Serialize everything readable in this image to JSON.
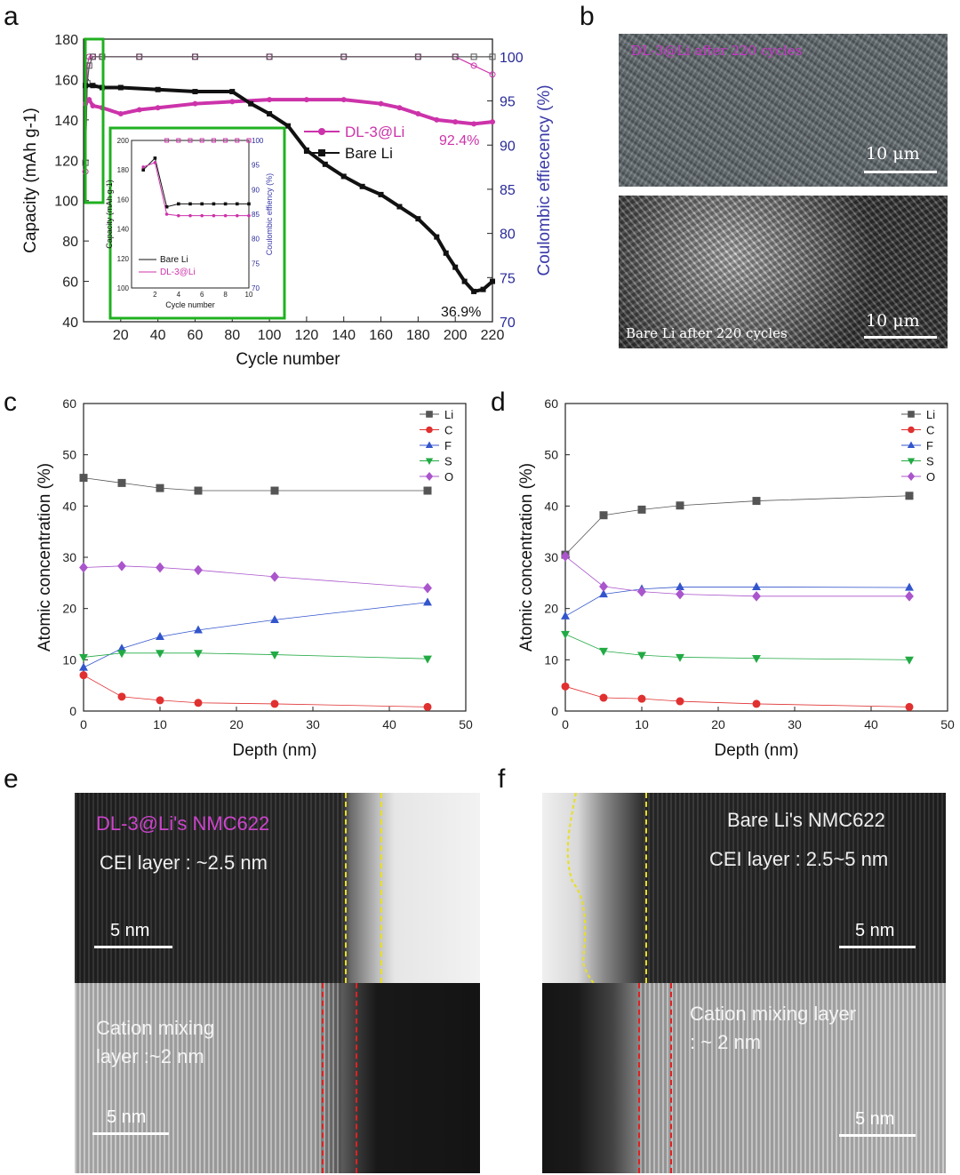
{
  "panels": {
    "a": "a",
    "b": "b",
    "c": "c",
    "d": "d",
    "e": "e",
    "f": "f"
  },
  "chart_data": [
    {
      "id": "a",
      "type": "line",
      "xlabel": "Cycle number",
      "ylabel": "Capacity (mAh g-1)",
      "y2label": "Coulombic effiecency (%)",
      "xlim": [
        0,
        220
      ],
      "ylim": [
        40,
        180
      ],
      "y2lim": [
        70,
        102
      ],
      "xticks": [
        20,
        40,
        60,
        80,
        100,
        120,
        140,
        160,
        180,
        200,
        220
      ],
      "yticks": [
        40,
        60,
        80,
        100,
        120,
        140,
        160,
        180
      ],
      "y2ticks": [
        70,
        75,
        80,
        85,
        90,
        95,
        100
      ],
      "series": [
        {
          "name": "DL-3@Li",
          "color": "#cc33aa",
          "marker": "circle",
          "x": [
            1,
            3,
            5,
            10,
            20,
            30,
            40,
            60,
            80,
            100,
            120,
            140,
            160,
            170,
            180,
            190,
            200,
            210,
            220
          ],
          "values": [
            148,
            150,
            147,
            146,
            143,
            145,
            146,
            148,
            149,
            150,
            150,
            150,
            148,
            146,
            143,
            140,
            139,
            138,
            139
          ]
        },
        {
          "name": "Bare Li",
          "color": "#111111",
          "marker": "square",
          "x": [
            1,
            5,
            10,
            20,
            40,
            60,
            80,
            90,
            100,
            110,
            120,
            130,
            140,
            150,
            160,
            170,
            180,
            190,
            195,
            200,
            205,
            210,
            215,
            220
          ],
          "values": [
            157,
            157,
            156,
            156,
            155,
            154,
            154,
            148,
            143,
            137,
            125,
            118,
            112,
            107,
            103,
            97,
            91,
            82,
            74,
            67,
            60,
            55,
            56,
            60
          ]
        }
      ],
      "ce_series": [
        {
          "name": "DL-3@Li CE",
          "color": "#cc33aa",
          "x": [
            1,
            2,
            3,
            5,
            10,
            30,
            60,
            100,
            140,
            180,
            200,
            210,
            220
          ],
          "values": [
            87,
            99,
            100,
            100,
            100,
            100,
            100,
            100,
            100,
            100,
            100,
            99,
            98
          ]
        },
        {
          "name": "Bare Li CE",
          "color": "#555555",
          "x": [
            1,
            2,
            3,
            5,
            10,
            30,
            60,
            100,
            140,
            180,
            200,
            210,
            220
          ],
          "values": [
            88,
            97,
            99,
            100,
            100,
            100,
            100,
            100,
            100,
            100,
            100,
            100,
            100
          ]
        }
      ],
      "annotations": [
        "92.4%",
        "36.9%"
      ],
      "inset": {
        "type": "line",
        "xlabel": "Cycle number",
        "ylabel": "Capacity (mAh g-1)",
        "y2label": "Coulombic effiency (%)",
        "xlim": [
          0,
          10
        ],
        "ylim": [
          100,
          200
        ],
        "y2lim": [
          70,
          100
        ],
        "xticks": [
          2,
          4,
          6,
          8,
          10
        ],
        "yticks": [
          100,
          120,
          140,
          160,
          180,
          200
        ],
        "y2ticks": [
          70,
          75,
          80,
          85,
          90,
          95,
          100
        ],
        "series": [
          {
            "name": "Bare Li",
            "color": "#111111",
            "x": [
              1,
              2,
              3,
              4,
              5,
              6,
              7,
              8,
              9,
              10
            ],
            "values": [
              180,
              188,
              155,
              157,
              157,
              157,
              157,
              157,
              157,
              157
            ]
          },
          {
            "name": "DL-3@Li",
            "color": "#cc33aa",
            "x": [
              1,
              2,
              3,
              4,
              5,
              6,
              7,
              8,
              9,
              10
            ],
            "values": [
              182,
              185,
              150,
              149,
              149,
              149,
              149,
              149,
              149,
              149
            ]
          }
        ]
      }
    },
    {
      "id": "c",
      "type": "line",
      "xlabel": "Depth (nm)",
      "ylabel": "Atomic concentration (%)",
      "xlim": [
        0,
        50
      ],
      "ylim": [
        0,
        60
      ],
      "xticks": [
        0,
        10,
        20,
        30,
        40,
        50
      ],
      "yticks": [
        0,
        10,
        20,
        30,
        40,
        50,
        60
      ],
      "x": [
        0,
        5,
        10,
        15,
        25,
        45
      ],
      "series": [
        {
          "name": "Li",
          "color": "#555555",
          "marker": "square",
          "values": [
            45.5,
            44.5,
            43.5,
            43,
            43,
            43
          ]
        },
        {
          "name": "C",
          "color": "#e03030",
          "marker": "circle",
          "values": [
            7,
            2.8,
            2.1,
            1.6,
            1.4,
            0.8
          ]
        },
        {
          "name": "F",
          "color": "#3355cc",
          "marker": "triangle-up",
          "values": [
            8.5,
            12.2,
            14.5,
            15.8,
            17.8,
            21.2
          ]
        },
        {
          "name": "S",
          "color": "#22aa44",
          "marker": "triangle-down",
          "values": [
            10.5,
            11.3,
            11.3,
            11.3,
            11,
            10.2
          ]
        },
        {
          "name": "O",
          "color": "#aa55cc",
          "marker": "diamond",
          "values": [
            28,
            28.3,
            28,
            27.5,
            26.2,
            24
          ]
        }
      ]
    },
    {
      "id": "d",
      "type": "line",
      "xlabel": "Depth (nm)",
      "ylabel": "Atomic concentration (%)",
      "xlim": [
        0,
        50
      ],
      "ylim": [
        0,
        60
      ],
      "xticks": [
        0,
        10,
        20,
        30,
        40,
        50
      ],
      "yticks": [
        0,
        10,
        20,
        30,
        40,
        50,
        60
      ],
      "x": [
        0,
        5,
        10,
        15,
        25,
        45
      ],
      "series": [
        {
          "name": "Li",
          "color": "#555555",
          "marker": "square",
          "values": [
            30.5,
            38.2,
            39.3,
            40.1,
            41,
            42
          ]
        },
        {
          "name": "C",
          "color": "#e03030",
          "marker": "circle",
          "values": [
            4.8,
            2.6,
            2.4,
            1.9,
            1.4,
            0.8
          ]
        },
        {
          "name": "F",
          "color": "#3355cc",
          "marker": "triangle-up",
          "values": [
            18.5,
            22.8,
            23.8,
            24.2,
            24.2,
            24.1
          ]
        },
        {
          "name": "S",
          "color": "#22aa44",
          "marker": "triangle-down",
          "values": [
            15,
            11.7,
            10.9,
            10.5,
            10.3,
            10
          ]
        },
        {
          "name": "O",
          "color": "#aa55cc",
          "marker": "diamond",
          "values": [
            30.2,
            24.3,
            23.3,
            22.8,
            22.4,
            22.4
          ]
        }
      ]
    }
  ],
  "sem": {
    "top_label": "DL-3@Li after 220 cycles",
    "bottom_label": "Bare Li after 220 cycles",
    "scale": "10 μm"
  },
  "tem": {
    "e_title": "DL-3@Li's NMC622",
    "e_cei": "CEI layer : ~2.5 nm",
    "e_mix_1": "Cation mixing",
    "e_mix_2": "layer :~2 nm",
    "f_title": "Bare Li's NMC622",
    "f_cei": "CEI layer : 2.5~5 nm",
    "f_mix_1": "Cation mixing layer",
    "f_mix_2": ": ~ 2 nm",
    "scale": "5 nm"
  }
}
